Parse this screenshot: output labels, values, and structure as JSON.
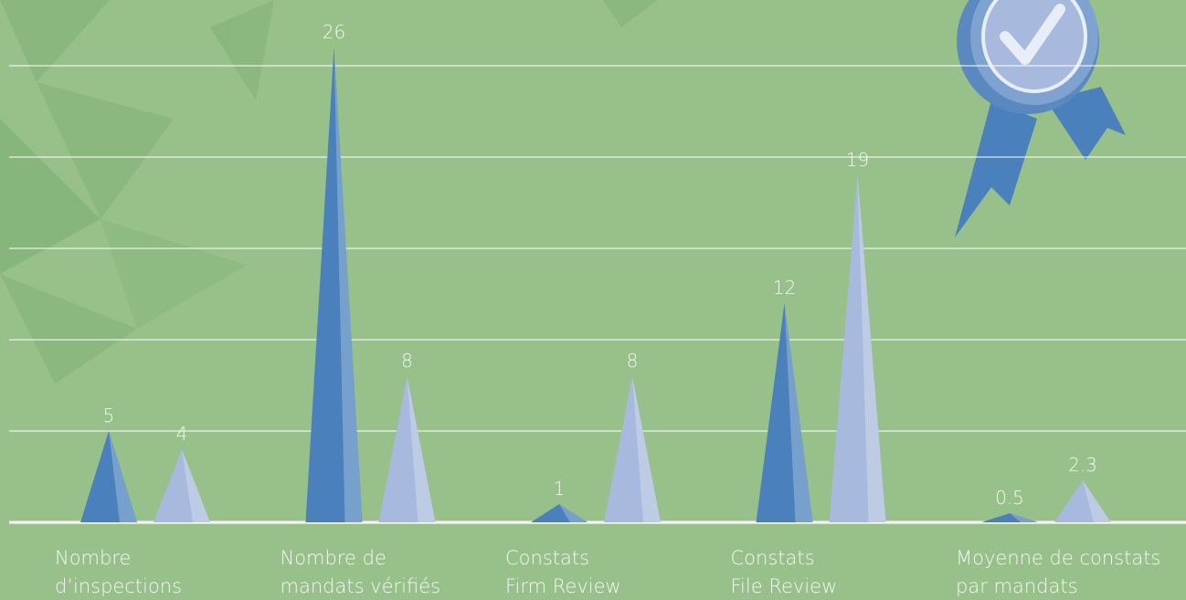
{
  "chart_data": {
    "type": "spike",
    "categories": [
      [
        "Nombre",
        "d’inspections"
      ],
      [
        "Nombre de",
        "mandats vérifiés"
      ],
      [
        "Constats",
        "Firm Review"
      ],
      [
        "Constats",
        "File Review"
      ],
      [
        "Moyenne de constats",
        "par mandats"
      ]
    ],
    "series": [
      {
        "color": "#4a80bb",
        "values": [
          5,
          26,
          1,
          12,
          0.5
        ]
      },
      {
        "color": "#a7b9dc",
        "values": [
          4,
          8,
          8,
          19,
          2.3
        ]
      }
    ],
    "ylim": [
      0,
      28.6
    ],
    "yticks": [
      0,
      5,
      10,
      15,
      20,
      25
    ],
    "grid": true
  }
}
